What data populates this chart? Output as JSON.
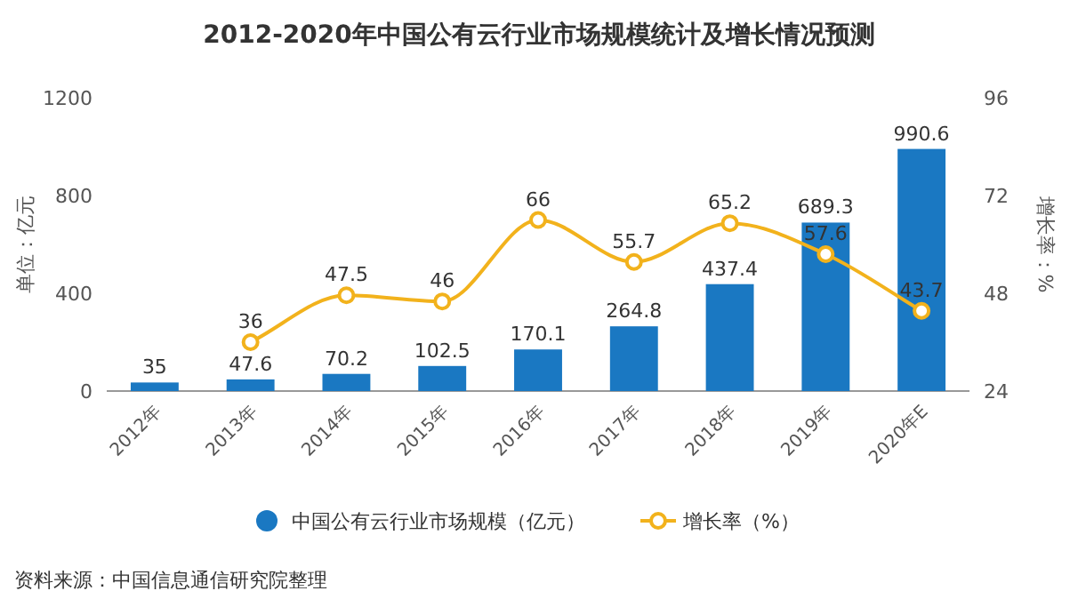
{
  "chart_data": {
    "type": "bar",
    "title": "2012-2020年中国公有云行业市场规模统计及增长情况预测",
    "categories": [
      "2012年",
      "2013年",
      "2014年",
      "2015年",
      "2016年",
      "2017年",
      "2018年",
      "2019年",
      "2020年E"
    ],
    "series": [
      {
        "name": "中国公有云行业市场规模（亿元）",
        "color": "#1a78c2",
        "values": [
          35,
          47.6,
          70.2,
          102.5,
          170.1,
          264.8,
          437.4,
          689.3,
          990.6
        ]
      },
      {
        "name": "增长率（%）",
        "type": "line",
        "axis": "y2",
        "color": "#f2b21c",
        "marker": "circle",
        "values": [
          null,
          36,
          47.5,
          46,
          66,
          55.7,
          65.2,
          57.6,
          43.7
        ]
      }
    ],
    "ylabel": "单位：亿元",
    "y2label": "增长率：%",
    "ylim": [
      0,
      1200
    ],
    "yticks": [
      0,
      400,
      800,
      1200
    ],
    "y2lim": [
      24,
      96
    ],
    "y2ticks": [
      24,
      48,
      72,
      96
    ],
    "data_labels": true,
    "legend": "bottom",
    "annotations": [
      "资料来源：中国信息通信研究院整理"
    ]
  }
}
